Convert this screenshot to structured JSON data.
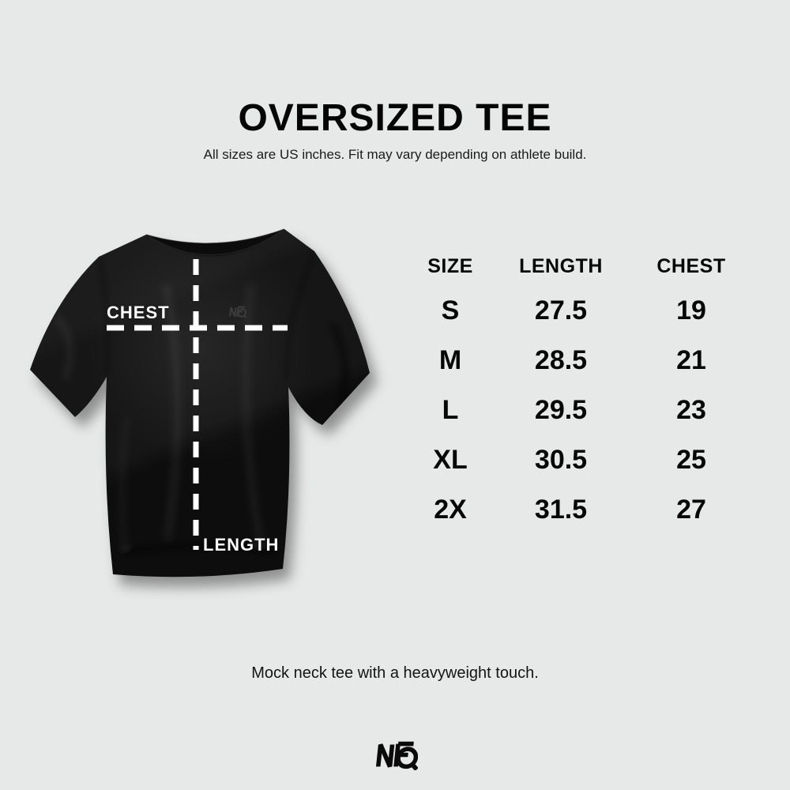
{
  "page": {
    "background": "#e7e8e8",
    "text_color": "#0a0a0a"
  },
  "header": {
    "title": "OVERSIZED TEE",
    "subtitle": "All sizes are US inches. Fit may vary depending on athlete build."
  },
  "diagram": {
    "chest_label": "CHEST",
    "length_label": "LENGTH",
    "shirt_brand_mark": "NFQ",
    "measurement_line_color": "#ffffff",
    "shirt_color": "#141414"
  },
  "size_table": {
    "columns": [
      "SIZE",
      "LENGTH",
      "CHEST"
    ],
    "rows": [
      {
        "size": "S",
        "length": "27.5",
        "chest": "19"
      },
      {
        "size": "M",
        "length": "28.5",
        "chest": "21"
      },
      {
        "size": "L",
        "length": "29.5",
        "chest": "23"
      },
      {
        "size": "XL",
        "length": "30.5",
        "chest": "25"
      },
      {
        "size": "2X",
        "length": "31.5",
        "chest": "27"
      }
    ]
  },
  "footer": {
    "caption": "Mock neck tee with a heavyweight touch.",
    "brand": "NFQ"
  }
}
